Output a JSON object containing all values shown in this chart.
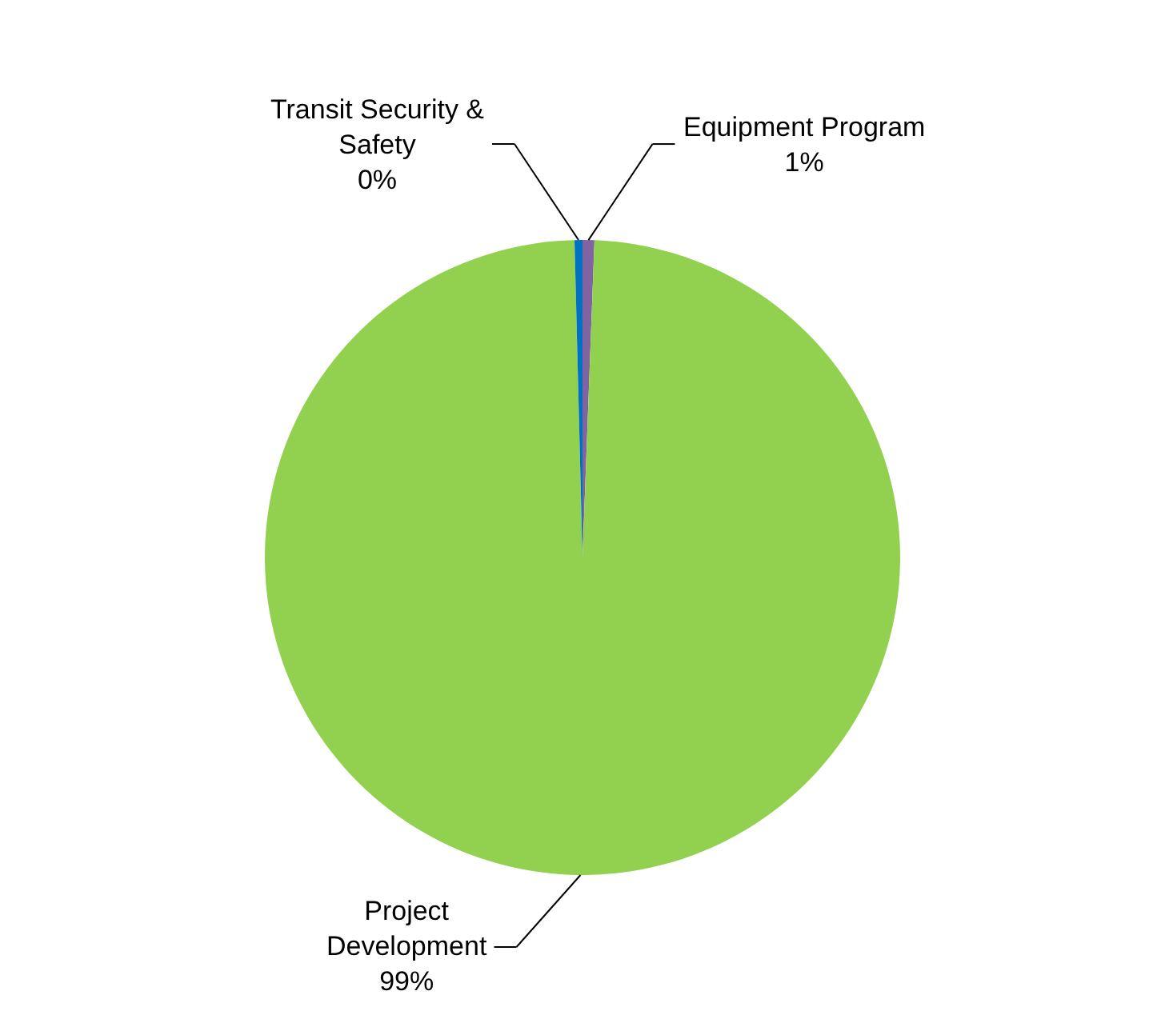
{
  "chart_data": {
    "type": "pie",
    "categories": [
      "Equipment Program",
      "Project Development",
      "Transit Security & Safety"
    ],
    "values": [
      0.6,
      99,
      0.4
    ],
    "value_labels": [
      "1%",
      "99%",
      "0%"
    ],
    "colors": [
      "#8064a2",
      "#92d050",
      "#0070c0"
    ],
    "legend": false
  }
}
